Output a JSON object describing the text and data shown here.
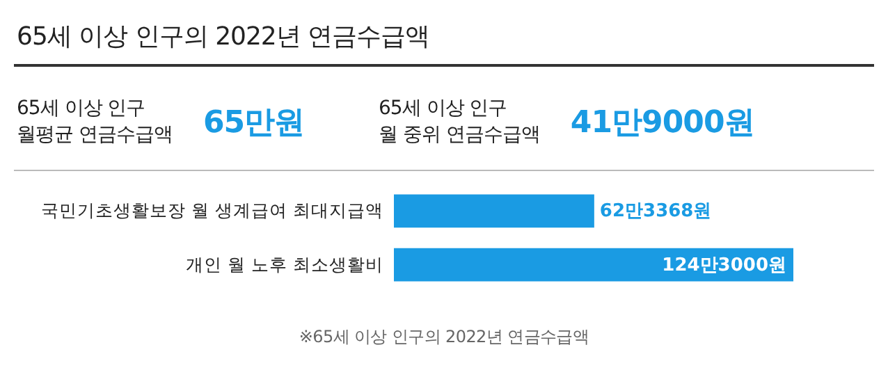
{
  "chart_data": [
    {
      "type": "other",
      "title": "65세 이상 인구의 2022년 연금수급액",
      "annotations": [
        "65세 이상 인구\n월평균 연금수급액",
        "65만원",
        "65세 이상 인구\n월 중위 연금수급액",
        "41만9000원"
      ]
    },
    {
      "type": "bar",
      "orientation": "horizontal",
      "categories": [
        "국민기초생활보장 월 생계급여 최대지급액",
        "개인 월 노후 최소생활비"
      ],
      "values": [
        62.3368,
        124.3
      ],
      "value_labels": [
        "62만3368원",
        "124만3000원"
      ],
      "color": "#1a9be3",
      "annotations": [
        "※65세 이상 인구의 2022년 연금수급액"
      ]
    }
  ]
}
